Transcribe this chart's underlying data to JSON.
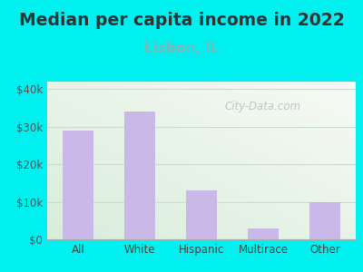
{
  "title": "Median per capita income in 2022",
  "subtitle": "Lisbon, IL",
  "categories": [
    "All",
    "White",
    "Hispanic",
    "Multirace",
    "Other"
  ],
  "values": [
    29000,
    34000,
    13000,
    3000,
    10000
  ],
  "bar_color": "#c9b8e8",
  "title_fontsize": 13.5,
  "subtitle_fontsize": 11,
  "subtitle_color": "#7ab8b8",
  "title_color": "#333333",
  "tick_color": "#555555",
  "xtick_color": "#444444",
  "ylim": [
    0,
    42000
  ],
  "yticks": [
    0,
    10000,
    20000,
    30000,
    40000
  ],
  "ytick_labels": [
    "$0",
    "$10k",
    "$20k",
    "$30k",
    "$40k"
  ],
  "bg_outer": "#00f0f0",
  "bg_inner_topleft": "#f0f5ee",
  "bg_inner_topright": "#ffffff",
  "bg_inner_bottom": "#ddeedd",
  "watermark": "City-Data.com",
  "grid_color": "#ccddcc",
  "grid_linewidth": 0.8
}
